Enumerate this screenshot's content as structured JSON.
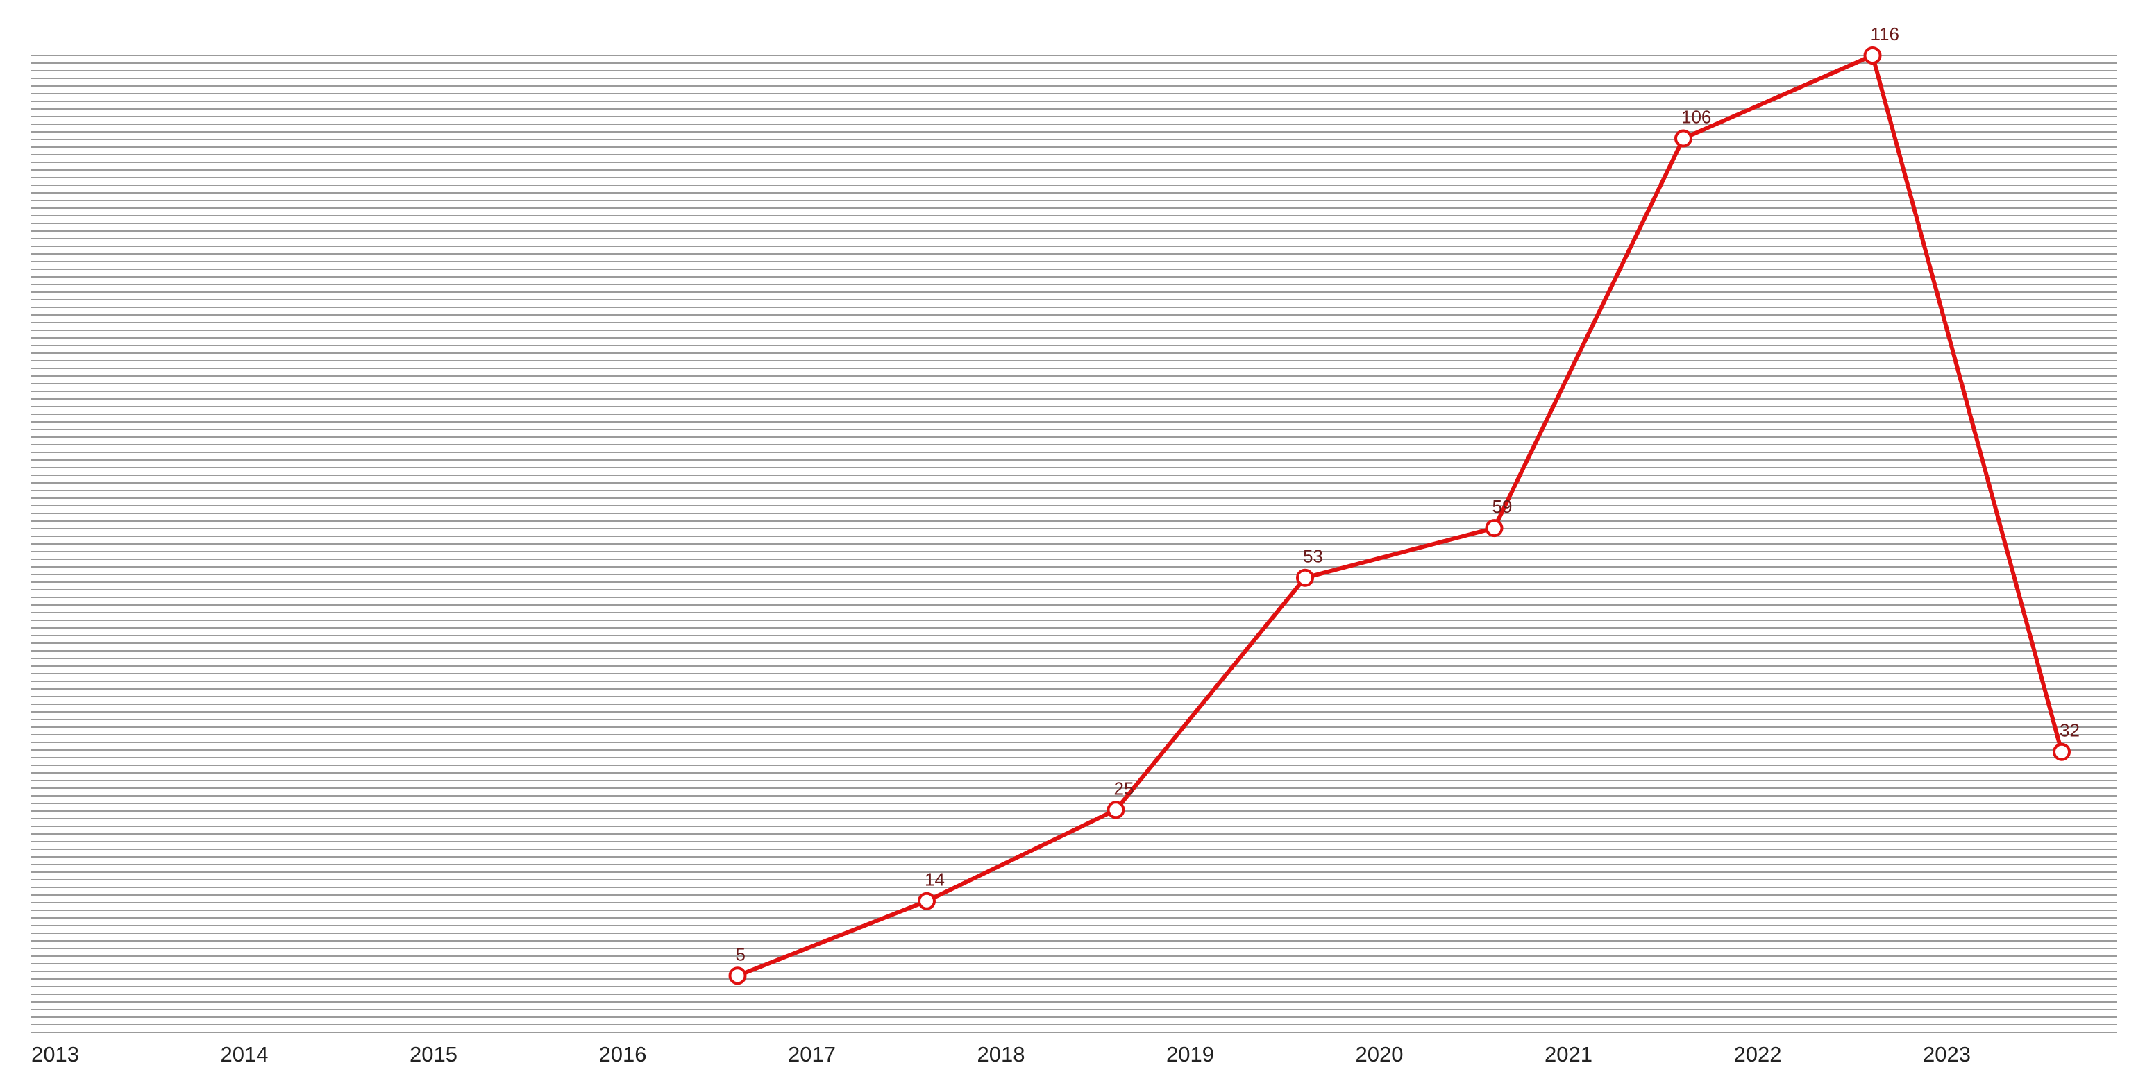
{
  "chart_data": {
    "type": "line",
    "title": "",
    "xlabel": "",
    "ylabel": "",
    "x": [
      "2013",
      "2014",
      "2015",
      "2016",
      "2017",
      "2018",
      "2019",
      "2020",
      "2021",
      "2022",
      "2023"
    ],
    "series": [
      {
        "x": [
          "2016",
          "2017",
          "2018",
          "2019",
          "2020",
          "2021",
          "2022",
          "2023"
        ],
        "values": [
          5,
          14,
          25,
          53,
          59,
          106,
          116,
          32
        ],
        "color": "#e01010"
      }
    ],
    "ylim": [
      0,
      116
    ],
    "grid": true,
    "legend": "none",
    "colors": {
      "line": "#e01010",
      "marker_fill": "#ffffff",
      "grid": "#7a7a7a",
      "tick_label": "#222222",
      "data_label": "#6b1a1a"
    }
  }
}
